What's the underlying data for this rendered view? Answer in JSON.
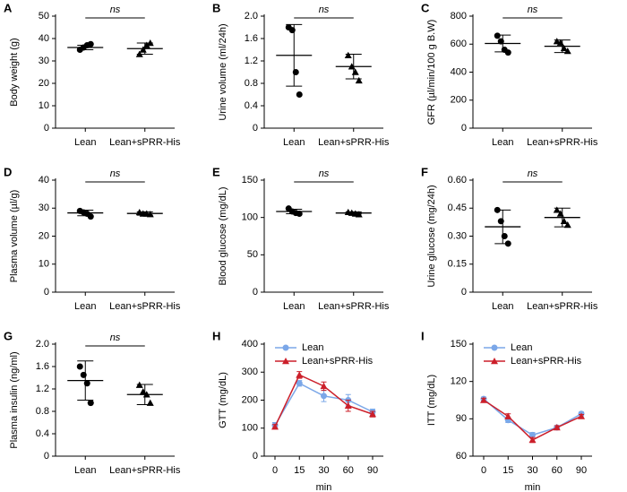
{
  "chart_data": [
    {
      "type": "dotplot",
      "panel": "A",
      "ylabel": "Body weight (g)",
      "annotation": "ns",
      "categories": [
        "Lean",
        "Lean+sPRR-His"
      ],
      "ylim": [
        0,
        50
      ],
      "yticks": [
        0,
        10,
        20,
        30,
        40,
        50
      ],
      "groups": [
        {
          "marker": "circle",
          "points": [
            35,
            36,
            37,
            37.5
          ],
          "mean": 36,
          "sd": 1
        },
        {
          "marker": "triangle",
          "points": [
            33,
            35,
            37,
            38
          ],
          "mean": 35.5,
          "sd": 2.5
        }
      ]
    },
    {
      "type": "dotplot",
      "panel": "B",
      "ylabel": "Urine volume (ml/24h)",
      "annotation": "ns",
      "categories": [
        "Lean",
        "Lean+sPRR-His"
      ],
      "ylim": [
        0,
        2
      ],
      "yticks": [
        0,
        0.4,
        0.8,
        1.2,
        1.6,
        {
          "value": 2,
          "label": "2.0"
        }
      ],
      "groups": [
        {
          "marker": "circle",
          "points": [
            1.8,
            1.75,
            1.0,
            0.6
          ],
          "mean": 1.3,
          "sd": 0.55
        },
        {
          "marker": "triangle",
          "points": [
            1.3,
            1.1,
            1.0,
            0.85
          ],
          "mean": 1.1,
          "sd": 0.22
        }
      ]
    },
    {
      "type": "dotplot",
      "panel": "C",
      "ylabel": "GFR (µl/min/100 g B.W)",
      "annotation": "ns",
      "categories": [
        "Lean",
        "Lean+sPRR-His"
      ],
      "ylim": [
        0,
        800
      ],
      "yticks": [
        0,
        200,
        400,
        600,
        800
      ],
      "groups": [
        {
          "marker": "circle",
          "points": [
            660,
            620,
            560,
            540
          ],
          "mean": 605,
          "sd": 60
        },
        {
          "marker": "triangle",
          "points": [
            620,
            610,
            570,
            550
          ],
          "mean": 585,
          "sd": 45
        }
      ]
    },
    {
      "type": "dotplot",
      "panel": "D",
      "ylabel": "Plasma volume (µl/g)",
      "annotation": "ns",
      "categories": [
        "Lean",
        "Lean+sPRR-His"
      ],
      "ylim": [
        0,
        40
      ],
      "yticks": [
        0,
        10,
        20,
        30,
        40
      ],
      "groups": [
        {
          "marker": "circle",
          "points": [
            29,
            28.5,
            28,
            27
          ],
          "mean": 28.3,
          "sd": 1
        },
        {
          "marker": "triangle",
          "points": [
            28.5,
            28,
            28,
            27.8
          ],
          "mean": 28.1,
          "sd": 0.6
        }
      ]
    },
    {
      "type": "dotplot",
      "panel": "E",
      "ylabel": "Blood glucose (mg/dL)",
      "annotation": "ns",
      "categories": [
        "Lean",
        "Lean+sPRR-His"
      ],
      "ylim": [
        0,
        150
      ],
      "yticks": [
        0,
        50,
        100,
        150
      ],
      "groups": [
        {
          "marker": "circle",
          "points": [
            112,
            108,
            106,
            105
          ],
          "mean": 108,
          "sd": 3
        },
        {
          "marker": "triangle",
          "points": [
            107,
            106,
            105,
            104
          ],
          "mean": 106,
          "sd": 1.5
        }
      ]
    },
    {
      "type": "dotplot",
      "panel": "F",
      "ylabel": "Urine glucose (mg/24h)",
      "annotation": "ns",
      "categories": [
        "Lean",
        "Lean+sPRR-His"
      ],
      "ylim": [
        0,
        0.6
      ],
      "yticks": [
        0,
        0.15,
        {
          "value": 0.3,
          "label": "0.30"
        },
        0.45,
        {
          "value": 0.6,
          "label": "0.60"
        }
      ],
      "groups": [
        {
          "marker": "circle",
          "points": [
            0.44,
            0.38,
            0.3,
            0.26
          ],
          "mean": 0.35,
          "sd": 0.09
        },
        {
          "marker": "triangle",
          "points": [
            0.44,
            0.42,
            0.38,
            0.36
          ],
          "mean": 0.4,
          "sd": 0.05
        }
      ]
    },
    {
      "type": "dotplot",
      "panel": "G",
      "ylabel": "Plasma insulin (ng/ml)",
      "annotation": "ns",
      "categories": [
        "Lean",
        "Lean+sPRR-His"
      ],
      "ylim": [
        0,
        2
      ],
      "yticks": [
        0,
        0.4,
        0.8,
        1.2,
        1.6,
        {
          "value": 2,
          "label": "2.0"
        }
      ],
      "groups": [
        {
          "marker": "circle",
          "points": [
            1.6,
            1.45,
            1.3,
            0.95
          ],
          "mean": 1.35,
          "sd": 0.35
        },
        {
          "marker": "triangle",
          "points": [
            1.27,
            1.15,
            1.1,
            0.95
          ],
          "mean": 1.1,
          "sd": 0.18
        }
      ]
    },
    {
      "type": "line",
      "panel": "H",
      "ylabel": "GTT (mg/dL)",
      "xlabel": "min",
      "categories": [
        0,
        15,
        30,
        60,
        90
      ],
      "ylim": [
        0,
        400
      ],
      "yticks": [
        0,
        100,
        200,
        300,
        400
      ],
      "series": [
        {
          "name": "Lean",
          "color": "#7ba7e8",
          "marker": "circle",
          "values": [
            110,
            260,
            215,
            200,
            158
          ],
          "errors": [
            10,
            10,
            20,
            20,
            10
          ]
        },
        {
          "name": "Lean+sPRR-His",
          "color": "#cc1f2a",
          "marker": "triangle",
          "values": [
            105,
            290,
            250,
            180,
            150
          ],
          "errors": [
            8,
            12,
            15,
            20,
            10
          ]
        }
      ]
    },
    {
      "type": "line",
      "panel": "I",
      "ylabel": "ITT (mg/dL)",
      "xlabel": "min",
      "categories": [
        0,
        15,
        30,
        60,
        90
      ],
      "ylim": [
        60,
        150
      ],
      "yticks": [
        60,
        90,
        120,
        150
      ],
      "series": [
        {
          "name": "Lean",
          "color": "#7ba7e8",
          "marker": "circle",
          "values": [
            106,
            89,
            77,
            83,
            94
          ],
          "errors": [
            1.5,
            2,
            2,
            1.5,
            1.5
          ]
        },
        {
          "name": "Lean+sPRR-His",
          "color": "#cc1f2a",
          "marker": "triangle",
          "values": [
            105,
            92,
            73,
            83,
            92
          ],
          "errors": [
            1.5,
            2,
            2,
            1.5,
            1.5
          ]
        }
      ]
    }
  ]
}
